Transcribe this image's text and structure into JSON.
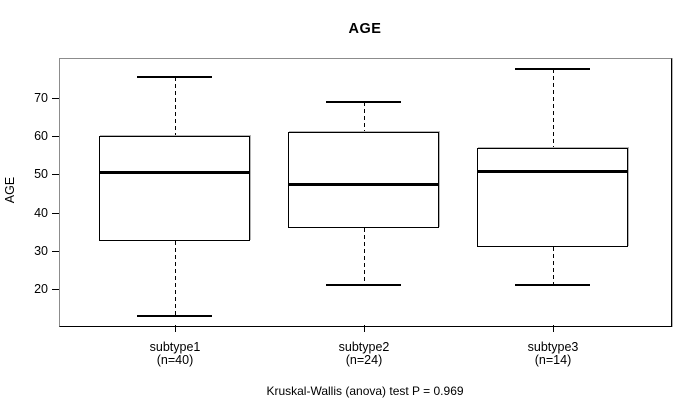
{
  "colors": {
    "foreground": "#000000",
    "background": "#ffffff",
    "frame_shade": "#8c8c8c",
    "box_fill": "#ffffff"
  },
  "chart_data": {
    "type": "boxplot",
    "title": "AGE",
    "ylabel": "AGE",
    "xlabel": "",
    "yticks": [
      20,
      30,
      40,
      50,
      60,
      70
    ],
    "ylim": [
      10.4,
      80.4
    ],
    "grid": false,
    "legend": null,
    "categories": [
      "subtype1",
      "subtype2",
      "subtype3"
    ],
    "series": [
      {
        "name": "subtype1",
        "n": 40,
        "n_label": "(n=40)",
        "whisker_low": 13,
        "q1": 32.5,
        "median": 50.5,
        "q3": 60,
        "whisker_high": 75.5,
        "outliers": []
      },
      {
        "name": "subtype2",
        "n": 24,
        "n_label": "(n=24)",
        "whisker_low": 21,
        "q1": 36,
        "median": 47.5,
        "q3": 61,
        "whisker_high": 69,
        "outliers": []
      },
      {
        "name": "subtype3",
        "n": 14,
        "n_label": "(n=14)",
        "whisker_low": 21,
        "q1": 31,
        "median": 51,
        "q3": 57,
        "whisker_high": 77.5,
        "outliers": []
      }
    ],
    "annotation": "Kruskal-Wallis (anova) test P = 0.969"
  }
}
